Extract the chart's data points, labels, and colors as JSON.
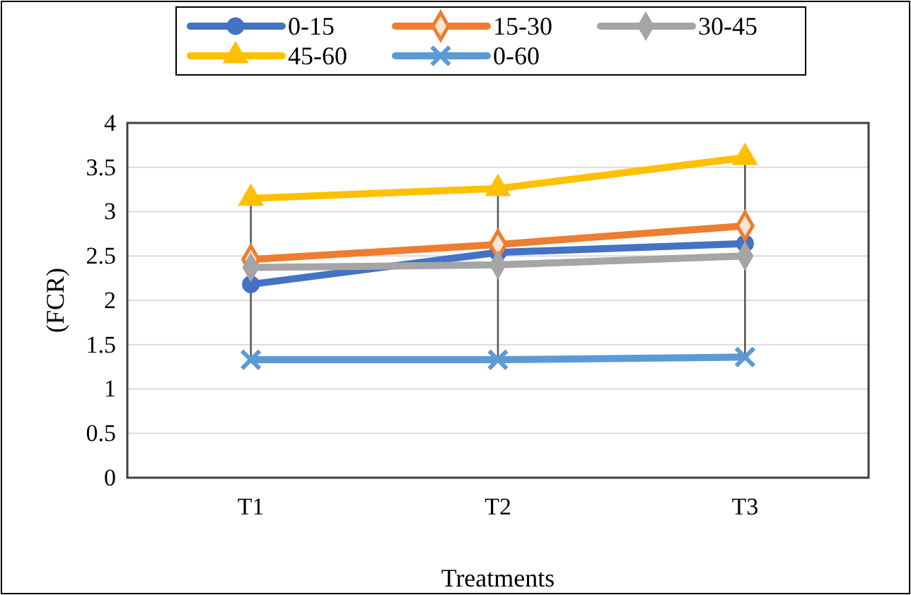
{
  "chart_data": {
    "type": "line",
    "xlabel": "Treatments",
    "ylabel": "(FCR)",
    "categories": [
      "T1",
      "T2",
      "T3"
    ],
    "series": [
      {
        "name": "0-15",
        "color": "#4472c4",
        "marker": "circle",
        "values": [
          2.18,
          2.54,
          2.64
        ]
      },
      {
        "name": "15-30",
        "color": "#ed7d31",
        "marker": "diamond",
        "values": [
          2.46,
          2.63,
          2.84
        ]
      },
      {
        "name": "30-45",
        "color": "#a5a5a5",
        "marker": "diamond",
        "values": [
          2.37,
          2.4,
          2.5
        ]
      },
      {
        "name": "45-60",
        "color": "#ffc000",
        "marker": "triangle",
        "values": [
          3.15,
          3.26,
          3.61
        ]
      },
      {
        "name": "0-60",
        "color": "#5b9bd5",
        "marker": "cross",
        "values": [
          1.33,
          1.33,
          1.36
        ]
      }
    ],
    "ylim": [
      0,
      4
    ],
    "yticks": [
      0,
      0.5,
      1,
      1.5,
      2,
      2.5,
      3,
      3.5,
      4
    ],
    "grid": "y",
    "legend": "top"
  }
}
